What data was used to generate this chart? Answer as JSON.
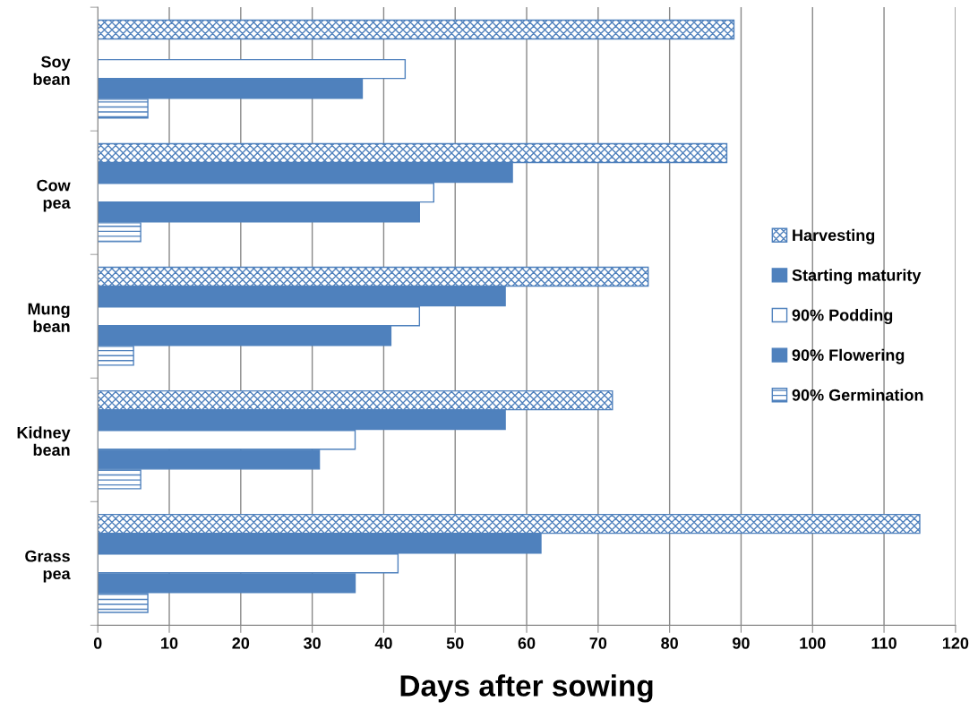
{
  "chart_data": {
    "type": "bar",
    "orientation": "horizontal",
    "xlabel": "Days after sowing",
    "categories": [
      "Soy\nbean",
      "Cow\npea",
      "Mung\nbean",
      "Kidney\nbean",
      "Grass\npea"
    ],
    "series": [
      {
        "name": "Harvesting",
        "color": "#4f81bd",
        "values": [
          89,
          88,
          77,
          72,
          115
        ]
      },
      {
        "name": "Starting maturity",
        "color": "#4f81bd",
        "values": [
          null,
          58,
          57,
          57,
          62
        ]
      },
      {
        "name": "90% Podding",
        "color": "#4f81bd",
        "values": [
          43,
          47,
          45,
          36,
          42
        ]
      },
      {
        "name": "90% Flowering",
        "color": "#4f81bd",
        "values": [
          37,
          45,
          41,
          31,
          36
        ]
      },
      {
        "name": "90% Germination",
        "color": "#4f81bd",
        "values": [
          7,
          6,
          5,
          6,
          7
        ]
      }
    ],
    "xlim": [
      0,
      120
    ],
    "xticks": [
      0,
      10,
      20,
      30,
      40,
      50,
      60,
      70,
      80,
      90,
      100,
      110,
      120
    ],
    "grid": "x",
    "legend": "right"
  }
}
